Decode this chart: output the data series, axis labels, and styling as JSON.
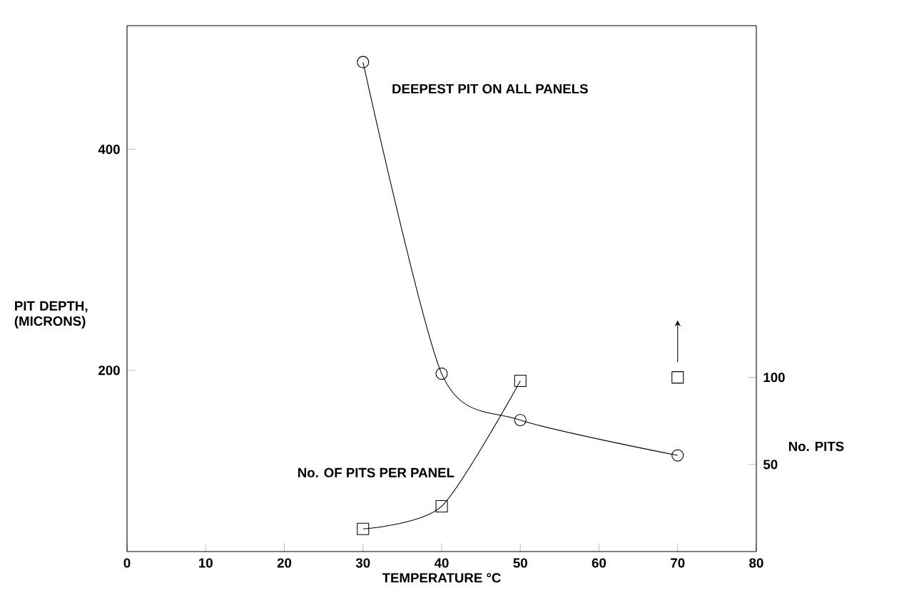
{
  "chart_data": {
    "type": "line",
    "xlabel": "TEMPERATURE °C",
    "ylabel": "PIT DEPTH, (MICRONS)",
    "y2label": "No. PITS",
    "xlim": [
      0,
      80
    ],
    "xticks": [
      0,
      10,
      20,
      30,
      40,
      50,
      60,
      70,
      80
    ],
    "ylim": [
      36,
      512
    ],
    "yticks": [
      200,
      400
    ],
    "y2lim": [
      0,
      302
    ],
    "y2ticks": [
      50,
      100
    ],
    "grid": false,
    "series": [
      {
        "name": "DEEPEST PIT ON ALL PANELS",
        "color": "#000000",
        "marker": "circle",
        "x": [
          30,
          40,
          50,
          70
        ],
        "values": [
          479,
          197,
          155,
          123
        ]
      },
      {
        "name": "No. OF PITS PER PANEL",
        "color": "#000000",
        "marker": "square",
        "axis": "y2",
        "x": [
          30,
          40,
          50
        ],
        "values": [
          13,
          26,
          98
        ]
      },
      {
        "type": "scatter",
        "color": "#000000",
        "marker": "square",
        "axis": "y2",
        "x": [
          70
        ],
        "values": [
          100
        ]
      }
    ]
  }
}
